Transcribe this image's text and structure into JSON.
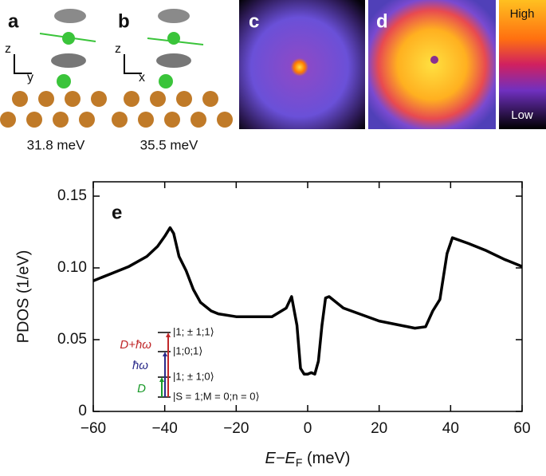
{
  "panels": {
    "a": "a",
    "b": "b",
    "c": "c",
    "d": "d"
  },
  "axes_a": {
    "vertical": "z",
    "horizontal": "y"
  },
  "axes_b": {
    "vertical": "z",
    "horizontal": "x"
  },
  "energy_a": "31.8 meV",
  "energy_b": "35.5 meV",
  "colorbar": {
    "high": "High",
    "low": "Low"
  },
  "inset": {
    "levels": [
      "|1; ± 1;1⟩",
      "|1;0;1⟩",
      "|1; ± 1;0⟩",
      "|S = 1;M = 0;n = 0⟩"
    ],
    "transitions": [
      {
        "label": "D",
        "color": "#1a9a2a"
      },
      {
        "label": "ħω",
        "color": "#2a2a8a"
      },
      {
        "label": "D+ħω",
        "color": "#c0282a"
      }
    ]
  },
  "chart_data": {
    "type": "line",
    "label": "e",
    "xlabel": [
      "E−E",
      "F",
      " (meV)"
    ],
    "ylabel": "PDOS (1/eV)",
    "x": [
      -60,
      -55,
      -50,
      -45,
      -42,
      -40,
      -38.5,
      -37.5,
      -36,
      -34,
      -32,
      -30,
      -27,
      -25,
      -20,
      -10,
      -6,
      -4.5,
      -3,
      -2,
      -1,
      0,
      1,
      2,
      3,
      4,
      5,
      6,
      10,
      20,
      30,
      33,
      35,
      37,
      39,
      40.5,
      45,
      50,
      55,
      60
    ],
    "values": [
      0.091,
      0.096,
      0.101,
      0.108,
      0.115,
      0.122,
      0.128,
      0.124,
      0.108,
      0.098,
      0.085,
      0.076,
      0.07,
      0.068,
      0.066,
      0.066,
      0.072,
      0.08,
      0.06,
      0.03,
      0.026,
      0.026,
      0.027,
      0.026,
      0.035,
      0.06,
      0.079,
      0.08,
      0.072,
      0.063,
      0.058,
      0.059,
      0.07,
      0.078,
      0.11,
      0.121,
      0.117,
      0.112,
      0.106,
      0.101
    ],
    "color": "#000000",
    "xlim": [
      -60,
      60
    ],
    "xticks": [
      {
        "value": -60,
        "label": "−60"
      },
      {
        "value": -40,
        "label": "−40"
      },
      {
        "value": -20,
        "label": "−20"
      },
      0,
      20,
      40,
      60
    ],
    "ylim": [
      0,
      0.16
    ],
    "yticks": [
      0,
      0.05,
      {
        "value": 0.1,
        "label": "0.10"
      },
      0.15
    ]
  }
}
